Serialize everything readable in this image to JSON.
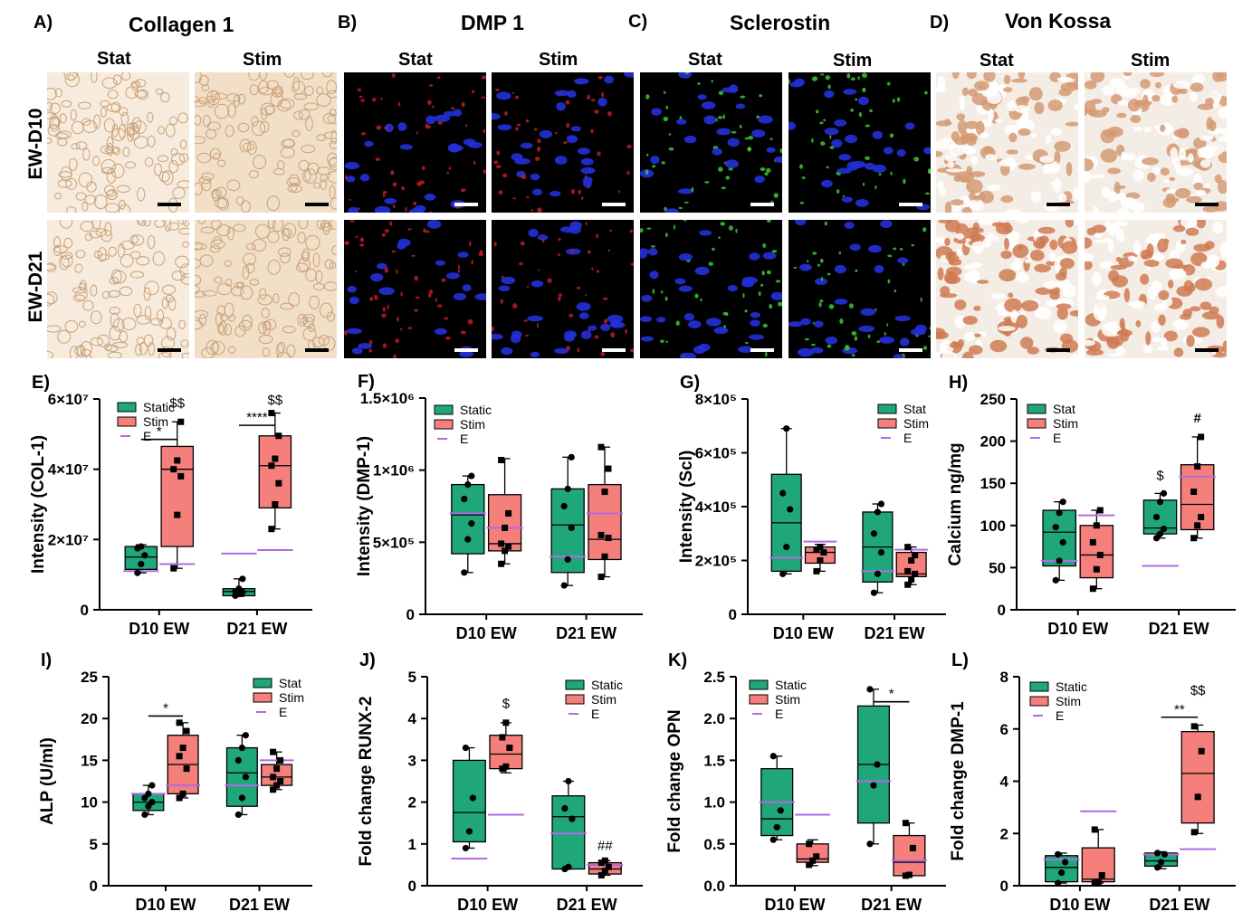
{
  "panels_top": [
    {
      "letter": "A)",
      "title": "Collagen 1"
    },
    {
      "letter": "B)",
      "title": "DMP 1"
    },
    {
      "letter": "C)",
      "title": "Sclerostin"
    },
    {
      "letter": "D)",
      "title": "Von Kossa"
    }
  ],
  "col_labels": {
    "stat": "Stat",
    "stim": "Stim"
  },
  "row_labels": [
    "EW-D10",
    "EW-D21"
  ],
  "colors": {
    "static": "#1fa67a",
    "stim": "#f47f7b",
    "e_line": "#b36ae2"
  },
  "chart_data": [
    {
      "id": "E",
      "letter": "E)",
      "type": "box",
      "ylabel": "Intensity  (COL-1)",
      "yticks": [
        "0",
        "2×10⁷",
        "4×10⁷",
        "6×10⁷"
      ],
      "ymax": 60000000,
      "categories": [
        "D10 EW",
        "D21 EW"
      ],
      "legend": [
        "Static",
        "Stim",
        "E"
      ],
      "boxes": [
        {
          "cat": 0,
          "series": "static",
          "min": 10500000,
          "q1": 11500000,
          "med": 15000000,
          "q3": 18000000,
          "max": 18500000,
          "e": 11000000,
          "points": [
            10500000,
            13000000,
            15500000,
            17500000,
            18000000
          ]
        },
        {
          "cat": 0,
          "series": "stim",
          "min": 11800000,
          "q1": 18000000,
          "med": 40000000,
          "q3": 46500000,
          "max": 53500000,
          "e": 13000000,
          "points": [
            11800000,
            27000000,
            38000000,
            40000000,
            42500000,
            53500000
          ]
        },
        {
          "cat": 1,
          "series": "static",
          "min": 3800000,
          "q1": 4000000,
          "med": 5200000,
          "q3": 6000000,
          "max": 8800000,
          "e": 16000000,
          "points": [
            4000000,
            4500000,
            5000000,
            5200000,
            6000000,
            8800000
          ]
        },
        {
          "cat": 1,
          "series": "stim",
          "min": 23000000,
          "q1": 29000000,
          "med": 41000000,
          "q3": 49500000,
          "max": 56000000,
          "e": 17000000,
          "points": [
            23000000,
            30000000,
            36000000,
            41000000,
            43000000,
            49500000,
            56000000
          ]
        }
      ],
      "annotations": [
        {
          "text": "$$",
          "cat": 0,
          "series": "stim",
          "y": 57500000
        },
        {
          "text": "*",
          "bracket": [
            0,
            "static",
            0,
            "stim"
          ],
          "y": 48500000
        },
        {
          "text": "****",
          "bracket": [
            1,
            "static",
            1,
            "stim"
          ],
          "y": 52500000
        },
        {
          "text": "$$",
          "cat": 1,
          "series": "stim",
          "y": 58500000
        }
      ]
    },
    {
      "id": "F",
      "letter": "F)",
      "type": "box",
      "ylabel": "Intensity  (DMP-1)",
      "yticks": [
        "0",
        "5×10⁵",
        "1×10⁶",
        "1.5×10⁶"
      ],
      "ymax": 1500000,
      "categories": [
        "D10 EW",
        "D21 EW"
      ],
      "legend": [
        "Static",
        "Stim",
        "E"
      ],
      "boxes": [
        {
          "cat": 0,
          "series": "static",
          "min": 290000,
          "q1": 420000,
          "med": 690000,
          "q3": 900000,
          "max": 960000,
          "e": 700000,
          "points": [
            290000,
            520000,
            630000,
            800000,
            900000,
            960000
          ]
        },
        {
          "cat": 0,
          "series": "stim",
          "min": 350000,
          "q1": 440000,
          "med": 490000,
          "q3": 830000,
          "max": 1080000,
          "e": 600000,
          "points": [
            350000,
            440000,
            470000,
            490000,
            600000,
            700000,
            1070000
          ]
        },
        {
          "cat": 1,
          "series": "static",
          "min": 200000,
          "q1": 290000,
          "med": 620000,
          "q3": 870000,
          "max": 1090000,
          "e": 400000,
          "points": [
            200000,
            380000,
            600000,
            750000,
            870000,
            1090000
          ]
        },
        {
          "cat": 1,
          "series": "stim",
          "min": 260000,
          "q1": 380000,
          "med": 520000,
          "q3": 900000,
          "max": 1160000,
          "e": 700000,
          "points": [
            260000,
            400000,
            530000,
            550000,
            850000,
            1010000,
            1160000
          ]
        }
      ],
      "annotations": []
    },
    {
      "id": "G",
      "letter": "G)",
      "type": "box",
      "ylabel": "Intensity  (Scl)",
      "yticks": [
        "0",
        "2×10⁵",
        "4×10⁵",
        "6×10⁵",
        "8×10⁵"
      ],
      "ymax": 800000,
      "categories": [
        "D10 EW",
        "D21 EW"
      ],
      "legend": [
        "Stat",
        "Stim",
        "E"
      ],
      "boxes": [
        {
          "cat": 0,
          "series": "static",
          "min": 150000,
          "q1": 160000,
          "med": 340000,
          "q3": 520000,
          "max": 690000,
          "e": 210000,
          "points": [
            150000,
            250000,
            390000,
            450000,
            690000
          ]
        },
        {
          "cat": 0,
          "series": "stim",
          "min": 160000,
          "q1": 190000,
          "med": 230000,
          "q3": 250000,
          "max": 260000,
          "e": 270000,
          "points": [
            160000,
            200000,
            230000,
            240000,
            250000
          ]
        },
        {
          "cat": 1,
          "series": "static",
          "min": 80000,
          "q1": 120000,
          "med": 250000,
          "q3": 380000,
          "max": 410000,
          "e": 160000,
          "points": [
            80000,
            150000,
            230000,
            300000,
            380000,
            410000
          ]
        },
        {
          "cat": 1,
          "series": "stim",
          "min": 110000,
          "q1": 140000,
          "med": 150000,
          "q3": 230000,
          "max": 250000,
          "e": 240000,
          "points": [
            110000,
            130000,
            150000,
            160000,
            200000,
            220000,
            250000
          ]
        }
      ],
      "annotations": []
    },
    {
      "id": "H",
      "letter": "H)",
      "type": "box",
      "ylabel": "Calcium ng/mg",
      "yticks": [
        "0",
        "50",
        "100",
        "150",
        "200",
        "250"
      ],
      "ymax": 250,
      "categories": [
        "D10 EW",
        "D21 EW"
      ],
      "legend": [
        "Stat",
        "Stim",
        "E"
      ],
      "boxes": [
        {
          "cat": 0,
          "series": "static",
          "min": 35,
          "q1": 52,
          "med": 92,
          "q3": 118,
          "max": 128,
          "e": 58,
          "points": [
            35,
            58,
            80,
            98,
            115,
            128
          ]
        },
        {
          "cat": 0,
          "series": "stim",
          "min": 25,
          "q1": 38,
          "med": 65,
          "q3": 100,
          "max": 118,
          "e": 112,
          "points": [
            25,
            48,
            65,
            80,
            100,
            118
          ]
        },
        {
          "cat": 1,
          "series": "static",
          "min": 85,
          "q1": 90,
          "med": 97,
          "q3": 130,
          "max": 138,
          "e": 52,
          "points": [
            85,
            90,
            96,
            110,
            128,
            138
          ]
        },
        {
          "cat": 1,
          "series": "stim",
          "min": 85,
          "q1": 95,
          "med": 125,
          "q3": 172,
          "max": 205,
          "e": 158,
          "points": [
            85,
            100,
            110,
            140,
            170,
            205
          ]
        }
      ],
      "annotations": [
        {
          "text": "$",
          "cat": 1,
          "series": "static",
          "y": 154
        },
        {
          "text": "#",
          "cat": 1,
          "series": "stim",
          "y": 222
        }
      ]
    },
    {
      "id": "I",
      "letter": "I)",
      "type": "box",
      "ylabel": "ALP (U/ml)",
      "yticks": [
        "0",
        "5",
        "10",
        "15",
        "20",
        "25"
      ],
      "ymax": 25,
      "categories": [
        "D10 EW",
        "D21 EW"
      ],
      "legend": [
        "Stat",
        "Stim",
        "E"
      ],
      "boxes": [
        {
          "cat": 0,
          "series": "static",
          "min": 8.5,
          "q1": 9,
          "med": 10,
          "q3": 11,
          "max": 12,
          "e": 11,
          "points": [
            8.5,
            9.5,
            10,
            10.5,
            11,
            12
          ]
        },
        {
          "cat": 0,
          "series": "stim",
          "min": 10.5,
          "q1": 11,
          "med": 14.5,
          "q3": 18,
          "max": 19.5,
          "e": 12,
          "points": [
            10.5,
            11,
            14,
            15.5,
            16.5,
            18.5,
            19.5
          ]
        },
        {
          "cat": 1,
          "series": "static",
          "min": 8.5,
          "q1": 9.5,
          "med": 13.5,
          "q3": 16.5,
          "max": 18,
          "e": 12,
          "points": [
            8.5,
            10.5,
            13,
            15,
            16.5,
            18
          ]
        },
        {
          "cat": 1,
          "series": "stim",
          "min": 11.5,
          "q1": 12,
          "med": 13,
          "q3": 14.5,
          "max": 16,
          "e": 15,
          "points": [
            11.5,
            12,
            12.5,
            13,
            14,
            15,
            16
          ]
        }
      ],
      "annotations": [
        {
          "text": "*",
          "bracket": [
            0,
            "static",
            0,
            "stim"
          ],
          "y": 20.3
        }
      ]
    },
    {
      "id": "J",
      "letter": "J)",
      "type": "box",
      "ylabel": "Fold change RUNX-2",
      "yticks": [
        "0",
        "1",
        "2",
        "3",
        "4",
        "5"
      ],
      "ymax": 5,
      "categories": [
        "D10 EW",
        "D21 EW"
      ],
      "legend": [
        "Static",
        "Stim",
        "E"
      ],
      "boxes": [
        {
          "cat": 0,
          "series": "static",
          "min": 0.9,
          "q1": 1.05,
          "med": 1.75,
          "q3": 3,
          "max": 3.3,
          "e": 0.65,
          "points": [
            0.9,
            1.3,
            2.1,
            3.3
          ]
        },
        {
          "cat": 0,
          "series": "stim",
          "min": 2.7,
          "q1": 2.8,
          "med": 3.15,
          "q3": 3.6,
          "max": 3.9,
          "e": 1.7,
          "points": [
            2.8,
            2.85,
            3.3,
            3.55,
            3.9
          ]
        },
        {
          "cat": 1,
          "series": "static",
          "min": 0.4,
          "q1": 0.4,
          "med": 1.65,
          "q3": 2.15,
          "max": 2.5,
          "e": 1.25,
          "points": [
            0.4,
            0.45,
            1.6,
            1.85,
            2.5
          ]
        },
        {
          "cat": 1,
          "series": "stim",
          "min": 0.25,
          "q1": 0.28,
          "med": 0.4,
          "q3": 0.55,
          "max": 0.6,
          "e": 0.5,
          "points": [
            0.25,
            0.35,
            0.45,
            0.55,
            0.6
          ]
        }
      ],
      "annotations": [
        {
          "text": "$",
          "cat": 0,
          "series": "stim",
          "y": 4.25
        },
        {
          "text": "##",
          "cat": 1,
          "series": "stim",
          "y": 0.85
        }
      ]
    },
    {
      "id": "K",
      "letter": "K)",
      "type": "box",
      "ylabel": "Fold change OPN",
      "yticks": [
        "0.0",
        "0.5",
        "1.0",
        "1.5",
        "2.0",
        "2.5"
      ],
      "ymax": 2.5,
      "categories": [
        "D10 EW",
        "D21 EW"
      ],
      "legend": [
        "Static",
        "Stim",
        "E"
      ],
      "boxes": [
        {
          "cat": 0,
          "series": "static",
          "min": 0.55,
          "q1": 0.6,
          "med": 0.8,
          "q3": 1.4,
          "max": 1.55,
          "e": 1,
          "points": [
            0.55,
            0.7,
            0.9,
            1.55
          ]
        },
        {
          "cat": 0,
          "series": "stim",
          "min": 0.24,
          "q1": 0.28,
          "med": 0.32,
          "q3": 0.5,
          "max": 0.55,
          "e": 0.85,
          "points": [
            0.25,
            0.3,
            0.35,
            0.5
          ]
        },
        {
          "cat": 1,
          "series": "static",
          "min": 0.5,
          "q1": 0.75,
          "med": 1.45,
          "q3": 2.15,
          "max": 2.35,
          "e": 1.25,
          "points": [
            0.5,
            1.2,
            1.45,
            2.35
          ]
        },
        {
          "cat": 1,
          "series": "stim",
          "min": 0.12,
          "q1": 0.12,
          "med": 0.28,
          "q3": 0.6,
          "max": 0.75,
          "e": 0.3,
          "points": [
            0.12,
            0.13,
            0.45,
            0.75
          ]
        }
      ],
      "annotations": [
        {
          "text": "*",
          "bracket": [
            1,
            "static",
            1,
            "stim"
          ],
          "y": 2.2
        }
      ]
    },
    {
      "id": "L",
      "letter": "L)",
      "type": "box",
      "ylabel": "Fold change DMP-1",
      "yticks": [
        "0",
        "2",
        "4",
        "6",
        "8"
      ],
      "ymax": 8,
      "categories": [
        "D10 EW",
        "D21 EW"
      ],
      "legend": [
        "Static",
        "Stim",
        "E"
      ],
      "boxes": [
        {
          "cat": 0,
          "series": "static",
          "min": 0.1,
          "q1": 0.15,
          "med": 0.7,
          "q3": 1.15,
          "max": 1.25,
          "e": 1,
          "points": [
            0.1,
            0.5,
            0.9,
            1.2
          ]
        },
        {
          "cat": 0,
          "series": "stim",
          "min": 0.1,
          "q1": 0.15,
          "med": 0.25,
          "q3": 1.45,
          "max": 2.15,
          "e": 2.85,
          "points": [
            0.1,
            0.15,
            0.4,
            2.15
          ]
        },
        {
          "cat": 1,
          "series": "static",
          "min": 0.65,
          "q1": 0.75,
          "med": 0.95,
          "q3": 1.25,
          "max": 1.3,
          "e": 1.2,
          "points": [
            0.7,
            0.9,
            1.2,
            1.25
          ]
        },
        {
          "cat": 1,
          "series": "stim",
          "min": 2,
          "q1": 2.4,
          "med": 4.3,
          "q3": 5.9,
          "max": 6.15,
          "e": 1.4,
          "points": [
            2.05,
            3.4,
            5.15,
            6.1
          ]
        }
      ],
      "annotations": [
        {
          "text": "**",
          "bracket": [
            1,
            "static",
            1,
            "stim"
          ],
          "y": 6.45
        },
        {
          "text": "$$",
          "cat": 1,
          "series": "stim",
          "y": 7.3
        }
      ]
    }
  ]
}
